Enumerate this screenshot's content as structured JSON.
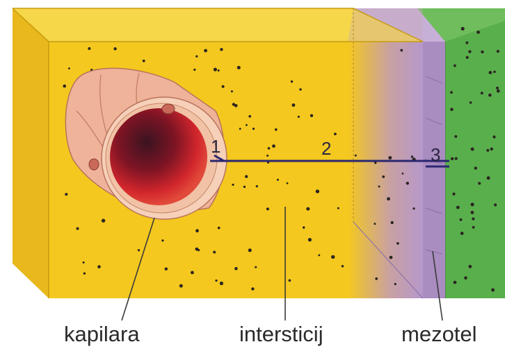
{
  "diagram": {
    "markers": {
      "one": "1",
      "two": "2",
      "three": "3"
    },
    "captions": {
      "capillary": "kapilara",
      "interstitium": "intersticij",
      "mesothelium": "mezotel"
    }
  },
  "colors": {
    "interstitium": "#f4c81e",
    "mesothelium": "#b79bc7",
    "tissue": "#56a84a",
    "capillary_wall": "#e9a890",
    "blood": "#cc1f25",
    "line": "#2a2670"
  }
}
